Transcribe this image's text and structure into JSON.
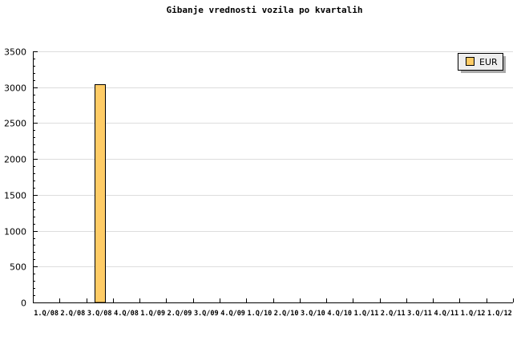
{
  "chart_data": {
    "type": "bar",
    "title": "Gibanje vrednosti vozila po kvartalih",
    "xlabel": "",
    "ylabel": "",
    "categories": [
      "1.Q/08",
      "2.Q/08",
      "3.Q/08",
      "4.Q/08",
      "1.Q/09",
      "2.Q/09",
      "3.Q/09",
      "4.Q/09",
      "1.Q/10",
      "2.Q/10",
      "3.Q/10",
      "4.Q/10",
      "1.Q/11",
      "2.Q/11",
      "3.Q/11",
      "4.Q/11",
      "1.Q/12",
      "1.Q/12"
    ],
    "series": [
      {
        "name": "EUR",
        "color": "#ffcc66",
        "values": [
          0,
          0,
          3040,
          0,
          0,
          0,
          0,
          0,
          0,
          0,
          0,
          0,
          0,
          0,
          0,
          0,
          0,
          0
        ]
      }
    ],
    "ylim": [
      0,
      3500
    ],
    "yticks": [
      0,
      500,
      1000,
      1500,
      2000,
      2500,
      3000,
      3500
    ],
    "grid": true,
    "legend": "top-right"
  }
}
